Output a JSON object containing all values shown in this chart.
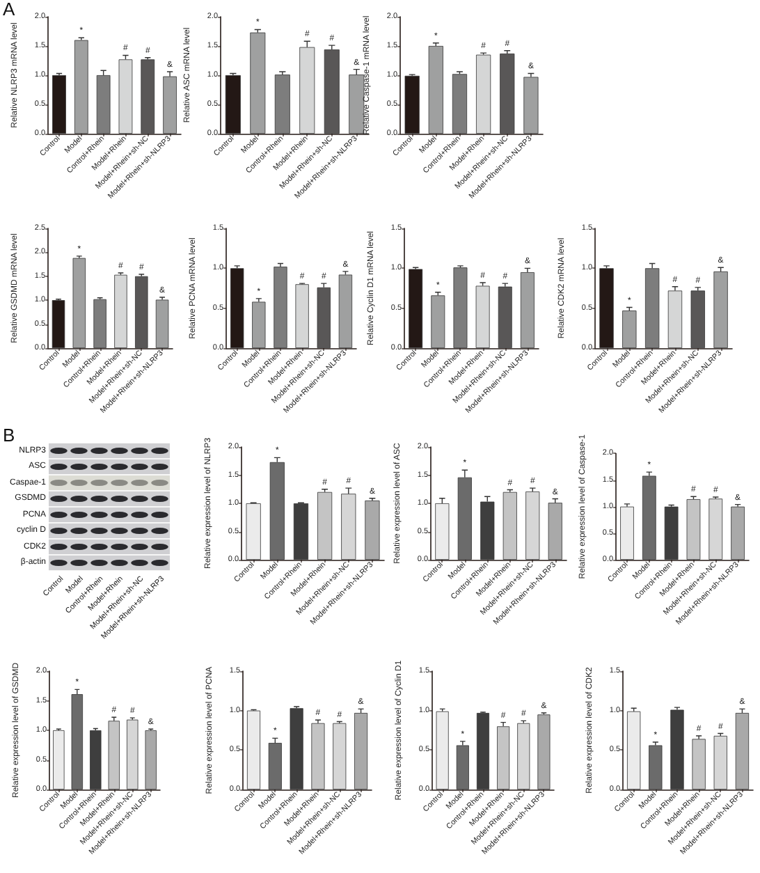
{
  "chart_data": [
    {
      "type": "bar",
      "ylabel": "Relative NLRP3 mRNA level",
      "categories": [
        "Control",
        "Model",
        "Control+Rhein",
        "Model+Rhein",
        "Model+Rhein+sh-NC",
        "Model+Rhein+sh-NLRP3"
      ],
      "values": [
        1.0,
        1.6,
        1.0,
        1.27,
        1.27,
        0.98
      ],
      "colors": [
        "#231815",
        "#9fa0a0",
        "#7d7d7d",
        "#d5d6d6",
        "#595757",
        "#9fa0a0"
      ],
      "errors": [
        [
          1.0,
          1.03
        ],
        [
          1.6,
          1.64
        ],
        [
          1.0,
          1.08
        ],
        [
          1.27,
          1.34
        ],
        [
          1.27,
          1.3
        ],
        [
          0.98,
          1.06
        ]
      ],
      "ylim": [
        0,
        2
      ],
      "yticks": [
        {
          "value": 0,
          "label": "0.0"
        },
        0.5,
        {
          "value": 1,
          "label": "1.0"
        },
        1.5,
        {
          "value": 2,
          "label": "2.0"
        }
      ],
      "annotations": [
        "A",
        {
          "text": "*",
          "x": "Model",
          "y": 1.64
        },
        {
          "text": "#",
          "x": "Model+Rhein",
          "y": 1.34
        },
        {
          "text": "#",
          "x": "Model+Rhein+sh-NC",
          "y": 1.3
        },
        {
          "text": "&",
          "x": "Model+Rhein+sh-NLRP3",
          "y": 1.06
        }
      ]
    },
    {
      "type": "bar",
      "ylabel": "Relative ASC mRNA level",
      "categories": [
        "Control",
        "Model",
        "Control+Rhein",
        "Model+Rhein",
        "Model+Rhein+sh-NC",
        "Model+Rhein+sh-NLRP3"
      ],
      "values": [
        1.0,
        1.73,
        1.01,
        1.48,
        1.44,
        1.01
      ],
      "colors": [
        "#231815",
        "#9fa0a0",
        "#7d7d7d",
        "#d5d6d6",
        "#595757",
        "#9fa0a0"
      ],
      "errors": [
        [
          1.0,
          1.03
        ],
        [
          1.73,
          1.78
        ],
        [
          1.01,
          1.06
        ],
        [
          1.48,
          1.58
        ],
        [
          1.44,
          1.51
        ],
        [
          1.01,
          1.1
        ]
      ],
      "ylim": [
        0,
        2
      ],
      "yticks": [
        {
          "value": 0,
          "label": "0.0"
        },
        0.5,
        {
          "value": 1,
          "label": "1.0"
        },
        1.5,
        {
          "value": 2,
          "label": "2.0"
        }
      ],
      "annotations": [
        {
          "text": "*",
          "x": "Model",
          "y": 1.78
        },
        {
          "text": "#",
          "x": "Model+Rhein",
          "y": 1.58
        },
        {
          "text": "#",
          "x": "Model+Rhein+sh-NC",
          "y": 1.51
        },
        {
          "text": "&",
          "x": "Model+Rhein+sh-NLRP3",
          "y": 1.1
        }
      ]
    },
    {
      "type": "bar",
      "ylabel": "Relative Caspase-1 mRNA level",
      "categories": [
        "Control",
        "Model",
        "Control+Rhein",
        "Model+Rhein",
        "Model+Rhein+sh-NC",
        "Model+Rhein+sh-NLRP3"
      ],
      "values": [
        0.99,
        1.5,
        1.02,
        1.35,
        1.37,
        0.97
      ],
      "colors": [
        "#231815",
        "#9fa0a0",
        "#7d7d7d",
        "#d5d6d6",
        "#595757",
        "#9fa0a0"
      ],
      "errors": [
        [
          0.99,
          1.01
        ],
        [
          1.5,
          1.55
        ],
        [
          1.02,
          1.06
        ],
        [
          1.35,
          1.38
        ],
        [
          1.37,
          1.42
        ],
        [
          0.97,
          1.03
        ]
      ],
      "ylim": [
        0,
        2
      ],
      "yticks": [
        {
          "value": 0,
          "label": "0.0"
        },
        0.5,
        {
          "value": 1,
          "label": "1.0"
        },
        1.5,
        {
          "value": 2,
          "label": "2.0"
        }
      ],
      "annotations": [
        {
          "text": "*",
          "x": "Model",
          "y": 1.55
        },
        {
          "text": "#",
          "x": "Model+Rhein",
          "y": 1.38
        },
        {
          "text": "#",
          "x": "Model+Rhein+sh-NC",
          "y": 1.42
        },
        {
          "text": "&",
          "x": "Model+Rhein+sh-NLRP3",
          "y": 1.03
        }
      ]
    },
    {
      "type": "bar",
      "ylabel": "Relative GSDMD mRNA level",
      "categories": [
        "Control",
        "Model",
        "Control+Rhein",
        "Model+Rhein",
        "Model+Rhein+sh-NC",
        "Model+Rhein+sh-NLRP3"
      ],
      "values": [
        1.0,
        1.88,
        1.02,
        1.53,
        1.5,
        1.01
      ],
      "colors": [
        "#231815",
        "#9fa0a0",
        "#7d7d7d",
        "#d5d6d6",
        "#595757",
        "#9fa0a0"
      ],
      "errors": [
        [
          1.0,
          1.02
        ],
        [
          1.88,
          1.92
        ],
        [
          1.02,
          1.05
        ],
        [
          1.53,
          1.57
        ],
        [
          1.5,
          1.54
        ],
        [
          1.01,
          1.06
        ]
      ],
      "ylim": [
        0,
        2.5
      ],
      "yticks": [
        {
          "value": 0,
          "label": "0.0"
        },
        0.5,
        {
          "value": 1,
          "label": "1.0"
        },
        1.5,
        {
          "value": 2,
          "label": "2.0"
        },
        2.5
      ],
      "annotations": [
        {
          "text": "*",
          "x": "Model",
          "y": 1.92
        },
        {
          "text": "#",
          "x": "Model+Rhein",
          "y": 1.57
        },
        {
          "text": "#",
          "x": "Model+Rhein+sh-NC",
          "y": 1.54
        },
        {
          "text": "&",
          "x": "Model+Rhein+sh-NLRP3",
          "y": 1.06
        }
      ]
    },
    {
      "type": "bar",
      "ylabel": "Relative PCNA mRNA level",
      "categories": [
        "Control",
        "Model",
        "Control+Rhein",
        "Model+Rhein",
        "Model+Rhein+sh-NC",
        "Model+Rhein+sh-NLRP3"
      ],
      "values": [
        1.0,
        0.58,
        1.02,
        0.8,
        0.76,
        0.92
      ],
      "colors": [
        "#231815",
        "#9fa0a0",
        "#7d7d7d",
        "#d5d6d6",
        "#595757",
        "#9fa0a0"
      ],
      "errors": [
        [
          1.0,
          1.03
        ],
        [
          0.58,
          0.62
        ],
        [
          1.02,
          1.06
        ],
        [
          0.8,
          0.81
        ],
        [
          0.76,
          0.81
        ],
        [
          0.92,
          0.96
        ]
      ],
      "ylim": [
        0,
        1.5
      ],
      "yticks": [
        {
          "value": 0,
          "label": "0.0"
        },
        0.5,
        {
          "value": 1,
          "label": "1.0"
        },
        1.5
      ],
      "annotations": [
        {
          "text": "*",
          "x": "Model",
          "y": 0.62
        },
        {
          "text": "#",
          "x": "Model+Rhein",
          "y": 0.81
        },
        {
          "text": "#",
          "x": "Model+Rhein+sh-NC",
          "y": 0.81
        },
        {
          "text": "&",
          "x": "Model+Rhein+sh-NLRP3",
          "y": 0.96
        }
      ]
    },
    {
      "type": "bar",
      "ylabel": "Relative Cyclin D1 mRNA level",
      "categories": [
        "Control",
        "Model",
        "Control+Rhein",
        "Model+Rhein",
        "Model+Rhein+sh-NC",
        "Model+Rhein+sh-NLRP3"
      ],
      "values": [
        0.99,
        0.66,
        1.01,
        0.78,
        0.77,
        0.95
      ],
      "colors": [
        "#231815",
        "#9fa0a0",
        "#7d7d7d",
        "#d5d6d6",
        "#595757",
        "#9fa0a0"
      ],
      "errors": [
        [
          0.99,
          1.01
        ],
        [
          0.66,
          0.7
        ],
        [
          1.01,
          1.03
        ],
        [
          0.78,
          0.82
        ],
        [
          0.77,
          0.81
        ],
        [
          0.95,
          1.0
        ]
      ],
      "ylim": [
        0,
        1.5
      ],
      "yticks": [
        {
          "value": 0,
          "label": "0.0"
        },
        0.5,
        {
          "value": 1,
          "label": "1.0"
        },
        1.5
      ],
      "annotations": [
        {
          "text": "*",
          "x": "Model",
          "y": 0.7
        },
        {
          "text": "#",
          "x": "Model+Rhein",
          "y": 0.82
        },
        {
          "text": "#",
          "x": "Model+Rhein+sh-NC",
          "y": 0.81
        },
        {
          "text": "&",
          "x": "Model+Rhein+sh-NLRP3",
          "y": 1.0
        }
      ]
    },
    {
      "type": "bar",
      "ylabel": "Relative CDK2 mRNA level",
      "categories": [
        "Control",
        "Model",
        "Control+Rhein",
        "Model+Rhein",
        "Model+Rhein+sh-NC",
        "Model+Rhein+sh-NLRP3"
      ],
      "values": [
        1.0,
        0.47,
        1.0,
        0.72,
        0.72,
        0.96
      ],
      "colors": [
        "#231815",
        "#9fa0a0",
        "#7d7d7d",
        "#d5d6d6",
        "#595757",
        "#9fa0a0"
      ],
      "errors": [
        [
          1.0,
          1.03
        ],
        [
          0.47,
          0.51
        ],
        [
          1.0,
          1.06
        ],
        [
          0.72,
          0.77
        ],
        [
          0.72,
          0.76
        ],
        [
          0.96,
          1.01
        ]
      ],
      "ylim": [
        0,
        1.5
      ],
      "yticks": [
        {
          "value": 0,
          "label": "0.0"
        },
        0.5,
        {
          "value": 1,
          "label": "1.0"
        },
        1.5
      ],
      "annotations": [
        {
          "text": "*",
          "x": "Model",
          "y": 0.51
        },
        {
          "text": "#",
          "x": "Model+Rhein",
          "y": 0.77
        },
        {
          "text": "#",
          "x": "Model+Rhein+sh-NC",
          "y": 0.76
        },
        {
          "text": "&",
          "x": "Model+Rhein+sh-NLRP3",
          "y": 1.01
        }
      ]
    },
    {
      "type": "other",
      "annotations": [
        "B"
      ],
      "categories": [
        "Control",
        "Model",
        "Control+Rhein",
        "Model+Rhein",
        "Model+Rhein+sh-NC",
        "Model+Rhein+sh-NLRP3"
      ],
      "y_categories": [
        "NLRP3",
        "ASC",
        "Caspae-1",
        "GSDMD",
        "PCNA",
        "cyclin D",
        "CDK2",
        "β-actin"
      ]
    },
    {
      "type": "bar",
      "ylabel": "Relative expression level of NLRP3",
      "categories": [
        "Control",
        "Model",
        "Control+Rhein",
        "Model+Rhein",
        "Model+Rhein+sh-NC",
        "Model+Rhein+sh-NLRP3"
      ],
      "values": [
        1.0,
        1.73,
        1.0,
        1.2,
        1.17,
        1.05
      ],
      "colors": [
        "#ebebeb",
        "#6b6b6b",
        "#3e3e3e",
        "#c4c4c4",
        "#d6d6d6",
        "#a9a9a9"
      ],
      "errors": [
        [
          1.0,
          1.01
        ],
        [
          1.73,
          1.81
        ],
        [
          1.0,
          1.01
        ],
        [
          1.2,
          1.25
        ],
        [
          1.17,
          1.27
        ],
        [
          1.05,
          1.09
        ]
      ],
      "ylim": [
        0,
        2
      ],
      "yticks": [
        {
          "value": 0,
          "label": "0.0"
        },
        0.5,
        {
          "value": 1,
          "label": "1.0"
        },
        1.5,
        {
          "value": 2,
          "label": "2.0"
        }
      ],
      "annotations": [
        {
          "text": "*",
          "x": "Model",
          "y": 1.81
        },
        {
          "text": "#",
          "x": "Model+Rhein",
          "y": 1.25
        },
        {
          "text": "#",
          "x": "Model+Rhein+sh-NC",
          "y": 1.27
        },
        {
          "text": "&",
          "x": "Model+Rhein+sh-NLRP3",
          "y": 1.09
        }
      ]
    },
    {
      "type": "bar",
      "ylabel": "Relative expression level of ASC",
      "categories": [
        "Control",
        "Model",
        "Control+Rhein",
        "Model+Rhein",
        "Model+Rhein+sh-NC",
        "Model+Rhein+sh-NLRP3"
      ],
      "values": [
        1.0,
        1.46,
        1.03,
        1.2,
        1.21,
        1.01
      ],
      "colors": [
        "#ebebeb",
        "#6b6b6b",
        "#3e3e3e",
        "#c4c4c4",
        "#d6d6d6",
        "#a9a9a9"
      ],
      "errors": [
        [
          1.0,
          1.09
        ],
        [
          1.46,
          1.59
        ],
        [
          1.03,
          1.12
        ],
        [
          1.2,
          1.24
        ],
        [
          1.21,
          1.27
        ],
        [
          1.01,
          1.08
        ]
      ],
      "ylim": [
        0,
        2
      ],
      "yticks": [
        {
          "value": 0,
          "label": "0.0"
        },
        0.5,
        {
          "value": 1,
          "label": "1.0"
        },
        1.5,
        {
          "value": 2,
          "label": "2.0"
        }
      ],
      "annotations": [
        {
          "text": "*",
          "x": "Model",
          "y": 1.59
        },
        {
          "text": "#",
          "x": "Model+Rhein",
          "y": 1.24
        },
        {
          "text": "#",
          "x": "Model+Rhein+sh-NC",
          "y": 1.27
        },
        {
          "text": "&",
          "x": "Model+Rhein+sh-NLRP3",
          "y": 1.08
        }
      ]
    },
    {
      "type": "bar",
      "ylabel": "Relative expression level of Caspase-1",
      "categories": [
        "Control",
        "Model",
        "Control+Rhein",
        "Model+Rhein",
        "Model+Rhein+sh-NC",
        "Model+Rhein+sh-NLRP3"
      ],
      "values": [
        1.0,
        1.58,
        1.0,
        1.14,
        1.15,
        1.0
      ],
      "colors": [
        "#ebebeb",
        "#6b6b6b",
        "#3e3e3e",
        "#c4c4c4",
        "#d6d6d6",
        "#a9a9a9"
      ],
      "errors": [
        [
          1.0,
          1.05
        ],
        [
          1.58,
          1.65
        ],
        [
          1.0,
          1.03
        ],
        [
          1.14,
          1.19
        ],
        [
          1.15,
          1.18
        ],
        [
          1.0,
          1.04
        ]
      ],
      "ylim": [
        0,
        2
      ],
      "yticks": [
        {
          "value": 0,
          "label": "0.0"
        },
        0.5,
        {
          "value": 1,
          "label": "1.0"
        },
        1.5,
        {
          "value": 2,
          "label": "2.0"
        }
      ],
      "annotations": [
        {
          "text": "*",
          "x": "Model",
          "y": 1.65
        },
        {
          "text": "#",
          "x": "Model+Rhein",
          "y": 1.19
        },
        {
          "text": "#",
          "x": "Model+Rhein+sh-NC",
          "y": 1.18
        },
        {
          "text": "&",
          "x": "Model+Rhein+sh-NLRP3",
          "y": 1.04
        }
      ]
    },
    {
      "type": "bar",
      "ylabel": "Relative expression level of GSDMD",
      "categories": [
        "Control",
        "Model",
        "Control+Rhein",
        "Model+Rhein",
        "Model+Rhein+sh-NC",
        "Model+Rhein+sh-NLRP3"
      ],
      "values": [
        1.0,
        1.61,
        1.0,
        1.16,
        1.18,
        1.0
      ],
      "colors": [
        "#ebebeb",
        "#6b6b6b",
        "#3e3e3e",
        "#c4c4c4",
        "#d6d6d6",
        "#a9a9a9"
      ],
      "errors": [
        [
          1.0,
          1.02
        ],
        [
          1.61,
          1.69
        ],
        [
          1.0,
          1.03
        ],
        [
          1.16,
          1.22
        ],
        [
          1.18,
          1.21
        ],
        [
          1.0,
          1.02
        ]
      ],
      "ylim": [
        0,
        2
      ],
      "yticks": [
        {
          "value": 0,
          "label": "0.0"
        },
        0.5,
        {
          "value": 1,
          "label": "1.0"
        },
        1.5,
        {
          "value": 2,
          "label": "2.0"
        }
      ],
      "annotations": [
        {
          "text": "*",
          "x": "Model",
          "y": 1.69
        },
        {
          "text": "#",
          "x": "Model+Rhein",
          "y": 1.22
        },
        {
          "text": "#",
          "x": "Model+Rhein+sh-NC",
          "y": 1.21
        },
        {
          "text": "&",
          "x": "Model+Rhein+sh-NLRP3",
          "y": 1.02
        }
      ]
    },
    {
      "type": "bar",
      "ylabel": "Relative expression level of PCNA",
      "categories": [
        "Control",
        "Model",
        "Control+Rhein",
        "Model+Rhein",
        "Model+Rhein+sh-NC",
        "Model+Rhein+sh-NLRP3"
      ],
      "values": [
        1.0,
        0.59,
        1.03,
        0.84,
        0.84,
        0.97
      ],
      "colors": [
        "#ebebeb",
        "#6b6b6b",
        "#3e3e3e",
        "#c4c4c4",
        "#d6d6d6",
        "#a9a9a9"
      ],
      "errors": [
        [
          1.0,
          1.01
        ],
        [
          0.59,
          0.65
        ],
        [
          1.03,
          1.05
        ],
        [
          0.84,
          0.88
        ],
        [
          0.84,
          0.86
        ],
        [
          0.97,
          1.02
        ]
      ],
      "ylim": [
        0,
        1.5
      ],
      "yticks": [
        {
          "value": 0,
          "label": "0.0"
        },
        0.5,
        {
          "value": 1,
          "label": "1.0"
        },
        1.5
      ],
      "annotations": [
        {
          "text": "*",
          "x": "Model",
          "y": 0.65
        },
        {
          "text": "#",
          "x": "Model+Rhein",
          "y": 0.88
        },
        {
          "text": "#",
          "x": "Model+Rhein+sh-NC",
          "y": 0.86
        },
        {
          "text": "&",
          "x": "Model+Rhein+sh-NLRP3",
          "y": 1.02
        }
      ]
    },
    {
      "type": "bar",
      "ylabel": "Relative expression level of Cyclin D1",
      "categories": [
        "Control",
        "Model",
        "Control+Rhein",
        "Model+Rhein",
        "Model+Rhein+sh-NC",
        "Model+Rhein+sh-NLRP3"
      ],
      "values": [
        0.99,
        0.56,
        0.97,
        0.8,
        0.84,
        0.95
      ],
      "colors": [
        "#ebebeb",
        "#6b6b6b",
        "#3e3e3e",
        "#c4c4c4",
        "#d6d6d6",
        "#a9a9a9"
      ],
      "errors": [
        [
          0.99,
          1.02
        ],
        [
          0.56,
          0.61
        ],
        [
          0.97,
          0.98
        ],
        [
          0.8,
          0.85
        ],
        [
          0.84,
          0.87
        ],
        [
          0.95,
          0.97
        ]
      ],
      "ylim": [
        0,
        1.5
      ],
      "yticks": [
        {
          "value": 0,
          "label": "0.0"
        },
        0.5,
        {
          "value": 1,
          "label": "1.0"
        },
        1.5
      ],
      "annotations": [
        {
          "text": "*",
          "x": "Model",
          "y": 0.61
        },
        {
          "text": "#",
          "x": "Model+Rhein",
          "y": 0.85
        },
        {
          "text": "#",
          "x": "Model+Rhein+sh-NC",
          "y": 0.87
        },
        {
          "text": "&",
          "x": "Model+Rhein+sh-NLRP3",
          "y": 0.97
        }
      ]
    },
    {
      "type": "bar",
      "ylabel": "Relative expression level of CDK2",
      "categories": [
        "Control",
        "Model",
        "Control+Rhein",
        "Model+Rhein",
        "Model+Rhein+sh-NC",
        "Model+Rhein+sh-NLRP3"
      ],
      "values": [
        0.99,
        0.56,
        1.01,
        0.64,
        0.68,
        0.97
      ],
      "colors": [
        "#ebebeb",
        "#6b6b6b",
        "#3e3e3e",
        "#c4c4c4",
        "#d6d6d6",
        "#a9a9a9"
      ],
      "errors": [
        [
          0.99,
          1.03
        ],
        [
          0.56,
          0.6
        ],
        [
          1.01,
          1.04
        ],
        [
          0.64,
          0.68
        ],
        [
          0.68,
          0.71
        ],
        [
          0.97,
          1.02
        ]
      ],
      "ylim": [
        0,
        1.5
      ],
      "yticks": [
        {
          "value": 0,
          "label": "0.0"
        },
        0.5,
        {
          "value": 1,
          "label": "1.0"
        },
        1.5
      ],
      "annotations": [
        {
          "text": "*",
          "x": "Model",
          "y": 0.6
        },
        {
          "text": "#",
          "x": "Model+Rhein",
          "y": 0.68
        },
        {
          "text": "#",
          "x": "Model+Rhein+sh-NC",
          "y": 0.71
        },
        {
          "text": "&",
          "x": "Model+Rhein+sh-NLRP3",
          "y": 1.02
        }
      ]
    }
  ]
}
